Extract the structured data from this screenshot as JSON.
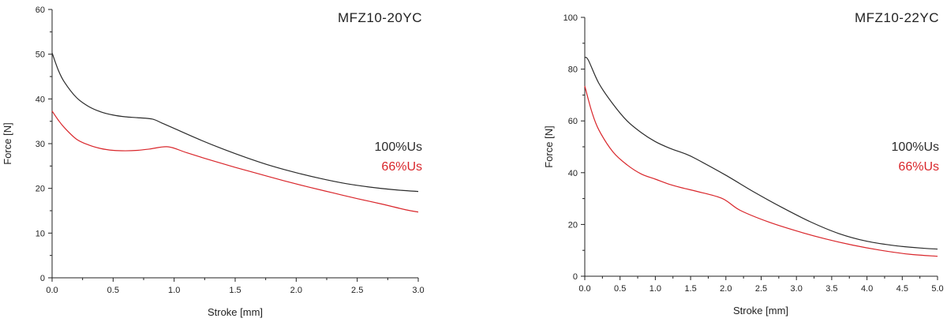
{
  "chart_data": [
    {
      "type": "line",
      "title": "MFZ10-20YC",
      "xlabel": "Stroke [mm]",
      "ylabel": "Force [N]",
      "xlim": [
        0,
        3.0
      ],
      "ylim": [
        0,
        60
      ],
      "xticks": [
        "0.0",
        "0.5",
        "1.0",
        "1.5",
        "2.0",
        "2.5",
        "3.0"
      ],
      "yticks": [
        "0",
        "10",
        "20",
        "30",
        "40",
        "50",
        "60"
      ],
      "grid": false,
      "legend_position": "right",
      "series": [
        {
          "name": "100%Us",
          "color": "#2b2b2b",
          "x": [
            0.0,
            0.05,
            0.1,
            0.2,
            0.3,
            0.4,
            0.5,
            0.6,
            0.7,
            0.82,
            0.9,
            1.0,
            1.2,
            1.4,
            1.6,
            1.8,
            2.0,
            2.2,
            2.4,
            2.6,
            2.8,
            3.0
          ],
          "y": [
            50.3,
            46.5,
            43.8,
            40.3,
            38.3,
            37.1,
            36.4,
            36.0,
            35.8,
            35.5,
            34.6,
            33.4,
            31.0,
            28.8,
            26.8,
            25.0,
            23.5,
            22.2,
            21.1,
            20.3,
            19.7,
            19.3
          ]
        },
        {
          "name": "66%Us",
          "color": "#d9262b",
          "x": [
            0.0,
            0.05,
            0.1,
            0.2,
            0.3,
            0.4,
            0.5,
            0.6,
            0.7,
            0.8,
            0.95,
            1.1,
            1.3,
            1.5,
            1.7,
            1.9,
            2.1,
            2.3,
            2.5,
            2.7,
            2.9,
            3.0
          ],
          "y": [
            37.3,
            35.3,
            33.6,
            31.0,
            29.7,
            28.9,
            28.5,
            28.4,
            28.5,
            28.8,
            29.3,
            28.0,
            26.3,
            24.7,
            23.2,
            21.7,
            20.3,
            19.0,
            17.7,
            16.5,
            15.2,
            14.7
          ]
        }
      ]
    },
    {
      "type": "line",
      "title": "MFZ10-22YC",
      "xlabel": "Stroke [mm]",
      "ylabel": "Force [N]",
      "xlim": [
        0,
        5.0
      ],
      "ylim": [
        0,
        100
      ],
      "xticks": [
        "0.0",
        "0.5",
        "1.0",
        "1.5",
        "2.0",
        "2.5",
        "3.0",
        "3.5",
        "4.0",
        "4.5",
        "5.0"
      ],
      "yticks": [
        "0",
        "20",
        "40",
        "60",
        "80",
        "100"
      ],
      "grid": false,
      "legend_position": "right",
      "series": [
        {
          "name": "100%Us",
          "color": "#2b2b2b",
          "x": [
            0.0,
            0.05,
            0.2,
            0.4,
            0.6,
            0.8,
            1.0,
            1.2,
            1.45,
            1.6,
            2.0,
            2.4,
            2.8,
            3.2,
            3.6,
            4.0,
            4.4,
            4.8,
            5.0
          ],
          "y": [
            84.5,
            83.5,
            74.5,
            66.5,
            60.0,
            55.5,
            52.0,
            49.5,
            47.0,
            45.0,
            39.0,
            32.5,
            26.5,
            21.0,
            16.5,
            13.5,
            11.8,
            10.8,
            10.5
          ]
        },
        {
          "name": "66%Us",
          "color": "#d9262b",
          "x": [
            0.0,
            0.1,
            0.2,
            0.4,
            0.6,
            0.8,
            1.0,
            1.2,
            1.4,
            1.6,
            1.95,
            2.2,
            2.6,
            3.0,
            3.4,
            3.8,
            4.2,
            4.6,
            5.0
          ],
          "y": [
            73.5,
            63.5,
            56.5,
            48.0,
            43.0,
            39.5,
            37.5,
            35.5,
            34.0,
            32.7,
            30.0,
            25.5,
            21.0,
            17.5,
            14.5,
            12.0,
            10.0,
            8.5,
            7.7
          ]
        }
      ]
    }
  ]
}
